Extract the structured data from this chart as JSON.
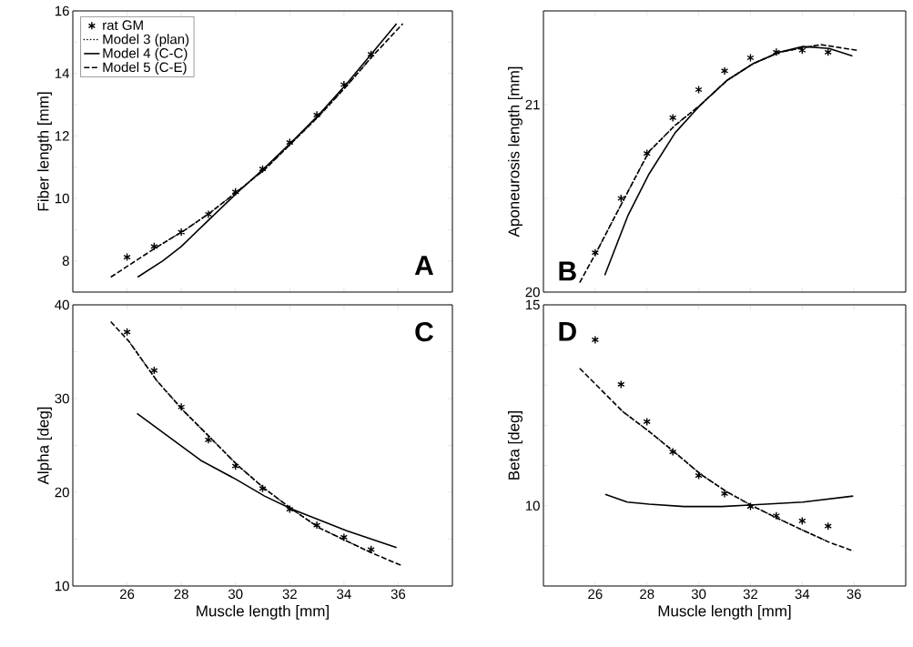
{
  "chart_data": [
    {
      "type": "line",
      "ylabel": "Fiber length [mm]",
      "xlim": [
        24,
        38
      ],
      "ylim": [
        7,
        16
      ],
      "xticks": [
        26,
        28,
        30,
        32,
        34,
        36
      ],
      "yticks": [
        8,
        {
          "value": 9,
          "label": null
        },
        10,
        {
          "value": 11,
          "label": null
        },
        12,
        {
          "value": 13,
          "label": null
        },
        14,
        {
          "value": 15,
          "label": null
        },
        16
      ],
      "tick_labels": "y",
      "legend": "top left",
      "annotations": [
        "A"
      ],
      "series": [
        {
          "name": "rat GM",
          "type": "scatter",
          "marker": "cross",
          "color": "#000000",
          "x": [
            26,
            27,
            28,
            29,
            30,
            31,
            32,
            33,
            34,
            35
          ],
          "values": [
            8.12,
            8.46,
            8.92,
            9.49,
            10.21,
            10.94,
            11.79,
            12.67,
            13.64,
            14.61
          ]
        },
        {
          "name": "Model 3 (plan)",
          "line_style": "dotted",
          "color": "#000000",
          "x": [
            27.04,
            28.16,
            29.06,
            29.73,
            31.07,
            32.08,
            33.09,
            34.1,
            35.05
          ],
          "values": [
            8.41,
            9.0,
            9.54,
            9.99,
            10.92,
            11.78,
            12.65,
            13.6,
            14.55
          ]
        },
        {
          "name": "Model 4 (C-C)",
          "line_style": "solid",
          "color": "#000000",
          "x": [
            26.39,
            27.32,
            28.0,
            29.06,
            30.0,
            31.07,
            32.08,
            33.09,
            34.1,
            35.05,
            35.94
          ],
          "values": [
            7.48,
            8.0,
            8.46,
            9.35,
            10.13,
            10.97,
            11.81,
            12.69,
            13.67,
            14.66,
            15.59
          ]
        },
        {
          "name": "Model 5 (C-E)",
          "line_style": "dashed",
          "color": "#000000",
          "x": [
            25.4,
            27.04,
            28.16,
            29.06,
            29.73,
            31.07,
            32.08,
            33.09,
            34.1,
            35.05,
            36.17
          ],
          "values": [
            7.48,
            8.41,
            9.0,
            9.54,
            9.99,
            10.92,
            11.78,
            12.65,
            13.6,
            14.55,
            15.59
          ]
        }
      ]
    },
    {
      "type": "line",
      "ylabel": "Aponeurosis length [mm]",
      "xlim": [
        24,
        38
      ],
      "ylim": [
        20,
        21.5
      ],
      "xticks": [
        26,
        28,
        30,
        32,
        34,
        36
      ],
      "yticks": [
        20,
        {
          "value": 20.5,
          "label": null
        },
        21
      ],
      "tick_labels": "y",
      "annotations": [
        "B"
      ],
      "series": [
        {
          "type": "scatter",
          "marker": "cross",
          "color": "#000000",
          "x": [
            26,
            27,
            28,
            29,
            30,
            31,
            32,
            33,
            34,
            35
          ],
          "values": [
            20.21,
            20.5,
            20.74,
            20.93,
            21.08,
            21.18,
            21.25,
            21.28,
            21.29,
            21.28
          ]
        },
        {
          "line_style": "dotted",
          "color": "#000000",
          "x": [
            26.11,
            27.09,
            28.08,
            29.09,
            30.08,
            31.1,
            32.12,
            33.13,
            34.71
          ],
          "values": [
            20.23,
            20.49,
            20.75,
            20.89,
            21.0,
            21.13,
            21.22,
            21.28,
            21.32
          ]
        },
        {
          "line_style": "solid",
          "color": "#000000",
          "x": [
            26.37,
            27.27,
            28.08,
            29.09,
            30.08,
            31.1,
            32.12,
            33.13,
            34.03,
            35.04,
            35.94
          ],
          "values": [
            20.09,
            20.41,
            20.63,
            20.85,
            21.0,
            21.13,
            21.22,
            21.28,
            21.31,
            21.3,
            21.26
          ]
        },
        {
          "line_style": "dashed",
          "color": "#000000",
          "x": [
            25.4,
            26.11,
            27.09,
            28.08,
            29.09,
            30.08,
            31.1,
            32.12,
            33.13,
            34.71,
            36.11
          ],
          "values": [
            20.05,
            20.23,
            20.49,
            20.75,
            20.89,
            21.0,
            21.13,
            21.22,
            21.28,
            21.32,
            21.29
          ]
        }
      ]
    },
    {
      "type": "line",
      "xlabel": "Muscle length [mm]",
      "ylabel": "Alpha [deg]",
      "xlim": [
        24,
        38
      ],
      "ylim": [
        10,
        40
      ],
      "xticks": [
        26,
        28,
        30,
        32,
        34,
        36
      ],
      "yticks": [
        10,
        {
          "value": 15,
          "label": null
        },
        20,
        {
          "value": 25,
          "label": null
        },
        30,
        {
          "value": 35,
          "label": null
        },
        40
      ],
      "annotations": [
        "C"
      ],
      "series": [
        {
          "type": "scatter",
          "marker": "cross",
          "color": "#000000",
          "x": [
            26,
            27,
            28,
            29,
            30,
            31,
            32,
            33,
            34,
            35
          ],
          "values": [
            37.1,
            33.0,
            29.1,
            25.6,
            22.8,
            20.4,
            18.2,
            16.5,
            15.2,
            13.9
          ]
        },
        {
          "line_style": "dotted",
          "color": "#000000",
          "x": [
            26.07,
            27.1,
            28.08,
            29.08,
            30.07,
            31.07,
            32.08,
            33.09,
            34.1,
            35.05
          ],
          "values": [
            36.1,
            31.9,
            28.7,
            25.8,
            22.9,
            20.4,
            18.2,
            16.2,
            14.8,
            13.5
          ]
        },
        {
          "line_style": "solid",
          "color": "#000000",
          "x": [
            26.37,
            28.72,
            30.07,
            31.07,
            32.08,
            34.1,
            35.94
          ],
          "values": [
            28.4,
            23.4,
            21.3,
            19.6,
            18.2,
            15.9,
            14.1
          ]
        },
        {
          "line_style": "dashed",
          "color": "#000000",
          "x": [
            25.4,
            26.07,
            27.1,
            28.08,
            29.08,
            30.07,
            31.07,
            32.08,
            33.09,
            34.1,
            35.05,
            36.11
          ],
          "values": [
            38.2,
            36.1,
            31.9,
            28.7,
            25.8,
            22.9,
            20.4,
            18.2,
            16.2,
            14.8,
            13.5,
            12.2
          ]
        }
      ]
    },
    {
      "type": "line",
      "xlabel": "Muscle length [mm]",
      "ylabel": "Beta [deg]",
      "xlim": [
        24,
        38
      ],
      "ylim": [
        8,
        15
      ],
      "xticks": [
        26,
        28,
        30,
        32,
        34,
        36
      ],
      "yticks": [
        {
          "value": 9,
          "label": null
        },
        10,
        {
          "value": 11,
          "label": null
        },
        {
          "value": 12,
          "label": null
        },
        {
          "value": 13,
          "label": null
        },
        {
          "value": 14,
          "label": null
        },
        15
      ],
      "annotations": [
        "D"
      ],
      "series": [
        {
          "type": "scatter",
          "marker": "cross",
          "color": "#000000",
          "x": [
            26,
            27,
            28,
            29,
            30,
            31,
            32,
            33,
            34,
            35
          ],
          "values": [
            14.13,
            13.02,
            12.09,
            11.34,
            10.75,
            10.3,
            9.98,
            9.75,
            9.62,
            9.49
          ]
        },
        {
          "line_style": "dotted",
          "color": "#000000",
          "x": [
            27.07,
            28.08,
            29.09,
            30.08,
            31.1,
            32.12,
            33.13,
            34.12,
            35.04
          ],
          "values": [
            12.34,
            11.85,
            11.32,
            10.78,
            10.34,
            9.98,
            9.66,
            9.36,
            9.09
          ]
        },
        {
          "line_style": "solid",
          "color": "#000000",
          "x": [
            26.39,
            27.24,
            28.08,
            29.43,
            30.89,
            32.12,
            34.03,
            35.97
          ],
          "values": [
            10.28,
            10.09,
            10.04,
            9.98,
            9.98,
            10.02,
            10.09,
            10.24
          ]
        },
        {
          "line_style": "dashed",
          "color": "#000000",
          "x": [
            25.4,
            27.07,
            28.08,
            29.09,
            30.08,
            31.1,
            32.12,
            33.13,
            34.12,
            35.04,
            35.99
          ],
          "values": [
            13.42,
            12.34,
            11.85,
            11.32,
            10.78,
            10.34,
            9.98,
            9.66,
            9.36,
            9.09,
            8.87
          ]
        }
      ]
    }
  ]
}
